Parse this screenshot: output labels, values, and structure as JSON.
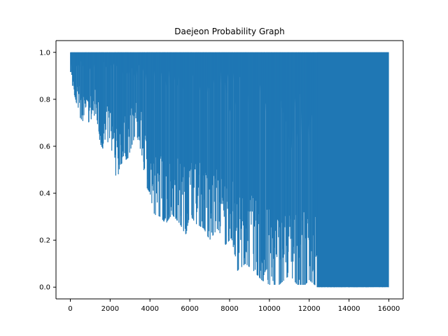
{
  "chart_data": {
    "type": "line",
    "title": "Daejeon Probability Graph",
    "xlabel": "",
    "ylabel": "",
    "xlim": [
      -720,
      16720
    ],
    "ylim": [
      -0.05,
      1.05
    ],
    "x_ticks": [
      0,
      2000,
      4000,
      6000,
      8000,
      10000,
      12000,
      14000,
      16000
    ],
    "x_tick_labels": [
      "0",
      "2000",
      "4000",
      "6000",
      "8000",
      "10000",
      "12000",
      "14000",
      "16000"
    ],
    "y_ticks": [
      0.0,
      0.2,
      0.4,
      0.6,
      0.8,
      1.0
    ],
    "y_tick_labels": [
      "0.0",
      "0.2",
      "0.4",
      "0.6",
      "0.8",
      "1.0"
    ],
    "grid": false,
    "series_color": "#1f77b4",
    "x_range": [
      0,
      16000
    ],
    "upper_envelope": [
      [
        0,
        1.0
      ],
      [
        16000,
        1.0
      ]
    ],
    "lower_envelope": [
      [
        0,
        0.9
      ],
      [
        200,
        0.82
      ],
      [
        500,
        0.72
      ],
      [
        800,
        0.69
      ],
      [
        1300,
        0.74
      ],
      [
        1500,
        0.61
      ],
      [
        1700,
        0.58
      ],
      [
        2000,
        0.64
      ],
      [
        2300,
        0.43
      ],
      [
        2500,
        0.52
      ],
      [
        2900,
        0.55
      ],
      [
        3300,
        0.66
      ],
      [
        3600,
        0.56
      ],
      [
        3800,
        0.43
      ],
      [
        4000,
        0.4
      ],
      [
        4200,
        0.31
      ],
      [
        4500,
        0.3
      ],
      [
        4800,
        0.27
      ],
      [
        5100,
        0.31
      ],
      [
        5500,
        0.27
      ],
      [
        5800,
        0.22
      ],
      [
        6000,
        0.31
      ],
      [
        6300,
        0.27
      ],
      [
        6700,
        0.25
      ],
      [
        7000,
        0.2
      ],
      [
        7400,
        0.25
      ],
      [
        7800,
        0.18
      ],
      [
        8100,
        0.21
      ],
      [
        8400,
        0.07
      ],
      [
        8800,
        0.1
      ],
      [
        9200,
        0.07
      ],
      [
        9600,
        0.03
      ],
      [
        10000,
        0.01
      ],
      [
        10500,
        0.01
      ],
      [
        11000,
        0.05
      ],
      [
        11400,
        0.01
      ],
      [
        11800,
        0.01
      ],
      [
        12000,
        0.03
      ],
      [
        12400,
        0.0
      ],
      [
        16000,
        0.0
      ]
    ]
  }
}
